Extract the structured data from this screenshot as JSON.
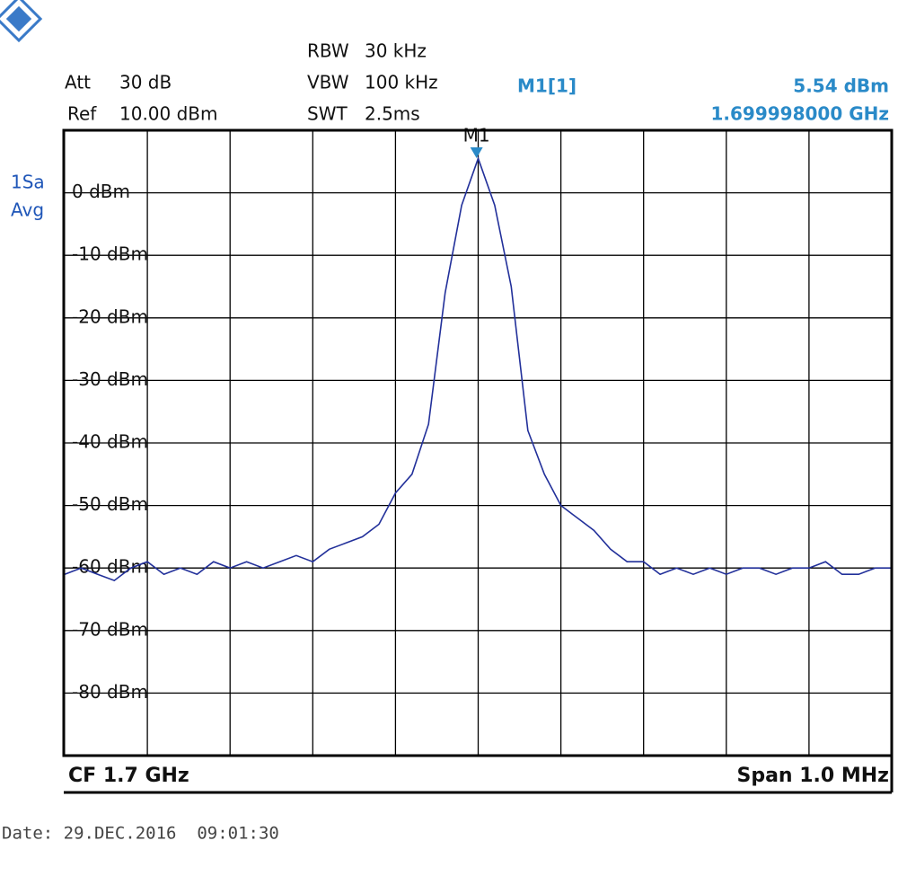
{
  "chart_data": {
    "type": "line",
    "settings": {
      "att_label": "Att",
      "att": "30 dB",
      "ref_label": "Ref",
      "ref": "10.00 dBm",
      "rbw_label": "RBW",
      "rbw": "30 kHz",
      "vbw_label": "VBW",
      "vbw": "100 kHz",
      "swt_label": "SWT",
      "swt": "2.5ms"
    },
    "trace_label": [
      "1Sa",
      "Avg"
    ],
    "marker": {
      "name": "M1",
      "label": "M1[1]",
      "x": 1.699998,
      "value": 5.54,
      "value_label": "5.54 dBm",
      "x_label": "1.699998000 GHz",
      "color": "#2a8ac8"
    },
    "center": "CF 1.7 GHz",
    "span": "Span 1.0 MHz",
    "date": "Date: 29.DEC.2016  09:01:30",
    "color": "#22309a",
    "xlim": [
      1.6995,
      1.7005
    ],
    "ylim": [
      -90,
      10
    ],
    "yticks": [
      {
        "value": 0,
        "label": "0 dBm"
      },
      {
        "value": -10,
        "label": "-10 dBm"
      },
      {
        "value": -20,
        "label": "-20 dBm"
      },
      {
        "value": -30,
        "label": "-30 dBm"
      },
      {
        "value": -40,
        "label": "-40 dBm"
      },
      {
        "value": -50,
        "label": "-50 dBm"
      },
      {
        "value": -60,
        "label": "-60 dBm"
      },
      {
        "value": -70,
        "label": "-70 dBm"
      },
      {
        "value": -80,
        "label": "-80 dBm"
      }
    ],
    "grid": true,
    "x": [
      1.6995,
      1.69952,
      1.69954,
      1.69956,
      1.69958,
      1.6996,
      1.69962,
      1.69964,
      1.69966,
      1.69968,
      1.6997,
      1.69972,
      1.69974,
      1.69976,
      1.69978,
      1.6998,
      1.69982,
      1.69984,
      1.69986,
      1.69988,
      1.6999,
      1.69992,
      1.69994,
      1.69996,
      1.69998,
      1.7,
      1.70002,
      1.70004,
      1.70006,
      1.70008,
      1.7001,
      1.70012,
      1.70014,
      1.70016,
      1.70018,
      1.7002,
      1.70022,
      1.70024,
      1.70026,
      1.70028,
      1.7003,
      1.70032,
      1.70034,
      1.70036,
      1.70038,
      1.7004,
      1.70042,
      1.70044,
      1.70046,
      1.70048,
      1.7005
    ],
    "values": [
      -61,
      -60,
      -61,
      -62,
      -60,
      -59,
      -61,
      -60,
      -61,
      -59,
      -60,
      -59,
      -60,
      -59,
      -58,
      -59,
      -57,
      -56,
      -55,
      -53,
      -48,
      -45,
      -37,
      -16,
      -2,
      5.5,
      -2,
      -15,
      -38,
      -45,
      -50,
      -52,
      -54,
      -57,
      -59,
      -59,
      -61,
      -60,
      -61,
      -60,
      -61,
      -60,
      -60,
      -61,
      -60,
      -60,
      -59,
      -61,
      -61,
      -60,
      -60
    ]
  }
}
